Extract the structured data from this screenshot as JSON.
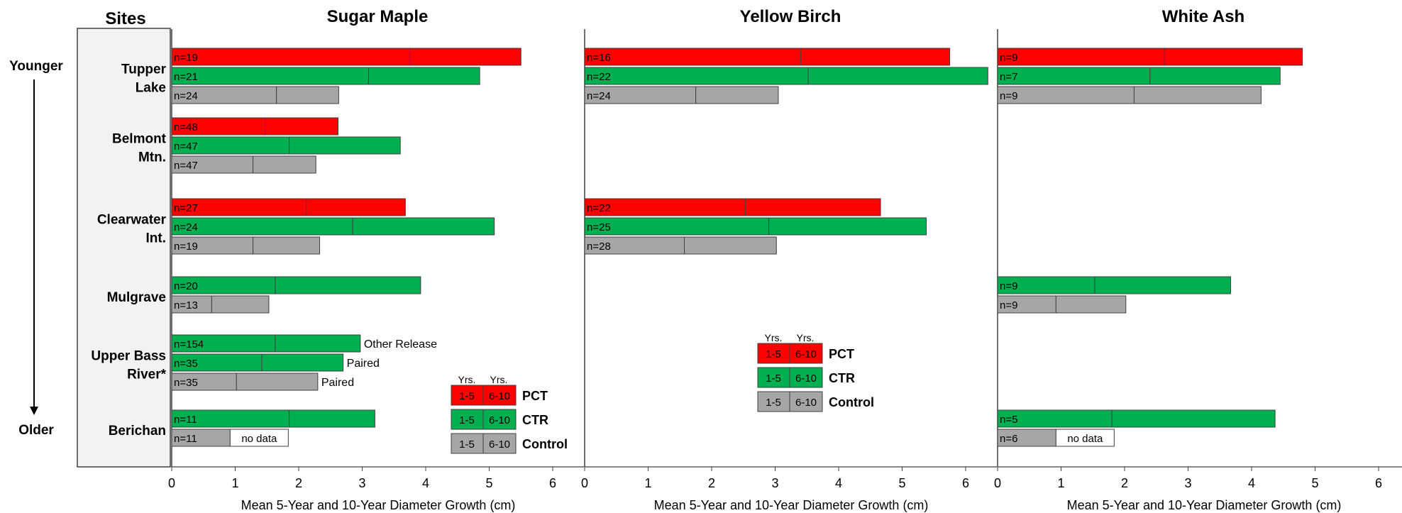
{
  "sites_title": "Sites",
  "axis_start_label": "Younger",
  "axis_end_label": "Older",
  "sites": [
    {
      "line1": "Tupper",
      "line2": "Lake"
    },
    {
      "line1": "Belmont",
      "line2": "Mtn."
    },
    {
      "line1": "Clearwater",
      "line2": "Int."
    },
    {
      "line1": "Mulgrave",
      "line2": ""
    },
    {
      "line1": "Upper Bass",
      "line2": "River*"
    },
    {
      "line1": "Berichan",
      "line2": ""
    }
  ],
  "legend": {
    "years_label": "Yrs.",
    "seg1_label": "1-5",
    "seg2_label": "6-10",
    "items": [
      {
        "name": "PCT",
        "color": "#ff0000"
      },
      {
        "name": "CTR",
        "color": "#00b050"
      },
      {
        "name": "Control",
        "color": "#a6a6a6"
      }
    ]
  },
  "chart_data": [
    {
      "type": "bar",
      "title": "Sugar Maple",
      "xlabel": "Mean 5-Year and 10-Year Diameter Growth (cm)",
      "xlim": [
        0,
        6.3
      ],
      "xticks": [
        "0",
        "1",
        "2",
        "3",
        "4",
        "5",
        "6"
      ],
      "groups": [
        {
          "site": "Tupper Lake",
          "bars": [
            {
              "series": "PCT",
              "n_label": "n=19",
              "yrs_1_5": 3.75,
              "yrs_1_10": 5.5
            },
            {
              "series": "CTR",
              "n_label": "n=21",
              "yrs_1_5": 3.1,
              "yrs_1_10": 4.85
            },
            {
              "series": "Control",
              "n_label": "n=24",
              "yrs_1_5": 1.65,
              "yrs_1_10": 2.63
            }
          ]
        },
        {
          "site": "Belmont Mtn.",
          "bars": [
            {
              "series": "PCT",
              "n_label": "n=48",
              "yrs_1_5": 1.47,
              "yrs_1_10": 2.62
            },
            {
              "series": "CTR",
              "n_label": "n=47",
              "yrs_1_5": 1.85,
              "yrs_1_10": 3.6
            },
            {
              "series": "Control",
              "n_label": "n=47",
              "yrs_1_5": 1.28,
              "yrs_1_10": 2.27
            }
          ]
        },
        {
          "site": "Clearwater Int.",
          "bars": [
            {
              "series": "PCT",
              "n_label": "n=27",
              "yrs_1_5": 2.12,
              "yrs_1_10": 3.68
            },
            {
              "series": "CTR",
              "n_label": "n=24",
              "yrs_1_5": 2.85,
              "yrs_1_10": 5.08
            },
            {
              "series": "Control",
              "n_label": "n=19",
              "yrs_1_5": 1.28,
              "yrs_1_10": 2.33
            }
          ]
        },
        {
          "site": "Mulgrave",
          "bars": [
            {
              "series": "CTR",
              "n_label": "n=20",
              "yrs_1_5": 1.63,
              "yrs_1_10": 3.92
            },
            {
              "series": "Control",
              "n_label": "n=13",
              "yrs_1_5": 0.63,
              "yrs_1_10": 1.53
            }
          ]
        },
        {
          "site": "Upper Bass River*",
          "bars": [
            {
              "series": "CTR",
              "n_label": "n=154",
              "yrs_1_5": 1.63,
              "yrs_1_10": 2.97,
              "note": "Other Release"
            },
            {
              "series": "CTR",
              "n_label": "n=35",
              "yrs_1_5": 1.42,
              "yrs_1_10": 2.7,
              "note": "Paired"
            },
            {
              "series": "Control",
              "n_label": "n=35",
              "yrs_1_5": 1.02,
              "yrs_1_10": 2.3,
              "note": "Paired"
            }
          ]
        },
        {
          "site": "Berichan",
          "bars": [
            {
              "series": "CTR",
              "n_label": "n=11",
              "yrs_1_5": 1.85,
              "yrs_1_10": 3.2
            },
            {
              "series": "Control",
              "n_label": "n=11",
              "yrs_1_5": 0.92,
              "yrs_1_10": null,
              "no_data_label": "no data"
            }
          ]
        }
      ]
    },
    {
      "type": "bar",
      "title": "Yellow Birch",
      "xlabel": "Mean 5-Year and 10-Year Diameter Growth (cm)",
      "xlim": [
        0,
        6.3
      ],
      "xticks": [
        "0",
        "1",
        "2",
        "3",
        "4",
        "5",
        "6"
      ],
      "groups": [
        {
          "site": "Tupper Lake",
          "bars": [
            {
              "series": "PCT",
              "n_label": "n=16",
              "yrs_1_5": 3.4,
              "yrs_1_10": 5.75
            },
            {
              "series": "CTR",
              "n_label": "n=22",
              "yrs_1_5": 3.52,
              "yrs_1_10": 6.35
            },
            {
              "series": "Control",
              "n_label": "n=24",
              "yrs_1_5": 1.75,
              "yrs_1_10": 3.05
            }
          ]
        },
        {
          "site": "Belmont Mtn.",
          "bars": []
        },
        {
          "site": "Clearwater Int.",
          "bars": [
            {
              "series": "PCT",
              "n_label": "n=22",
              "yrs_1_5": 2.53,
              "yrs_1_10": 4.66
            },
            {
              "series": "CTR",
              "n_label": "n=25",
              "yrs_1_5": 2.9,
              "yrs_1_10": 5.38
            },
            {
              "series": "Control",
              "n_label": "n=28",
              "yrs_1_5": 1.57,
              "yrs_1_10": 3.02
            }
          ]
        },
        {
          "site": "Mulgrave",
          "bars": []
        },
        {
          "site": "Upper Bass River*",
          "bars": []
        },
        {
          "site": "Berichan",
          "bars": []
        }
      ]
    },
    {
      "type": "bar",
      "title": "White Ash",
      "xlabel": "Mean 5-Year and 10-Year Diameter Growth (cm)",
      "xlim": [
        0,
        6.3
      ],
      "xticks": [
        "0",
        "1",
        "2",
        "3",
        "4",
        "5",
        "6"
      ],
      "groups": [
        {
          "site": "Tupper Lake",
          "bars": [
            {
              "series": "PCT",
              "n_label": "n=9",
              "yrs_1_5": 2.63,
              "yrs_1_10": 4.8
            },
            {
              "series": "CTR",
              "n_label": "n=7",
              "yrs_1_5": 2.4,
              "yrs_1_10": 4.45
            },
            {
              "series": "Control",
              "n_label": "n=9",
              "yrs_1_5": 2.15,
              "yrs_1_10": 4.15
            }
          ]
        },
        {
          "site": "Belmont Mtn.",
          "bars": []
        },
        {
          "site": "Clearwater Int.",
          "bars": []
        },
        {
          "site": "Mulgrave",
          "bars": [
            {
              "series": "CTR",
              "n_label": "n=9",
              "yrs_1_5": 1.53,
              "yrs_1_10": 3.67
            },
            {
              "series": "Control",
              "n_label": "n=9",
              "yrs_1_5": 0.92,
              "yrs_1_10": 2.02
            }
          ]
        },
        {
          "site": "Upper Bass River*",
          "bars": []
        },
        {
          "site": "Berichan",
          "bars": [
            {
              "series": "CTR",
              "n_label": "n=5",
              "yrs_1_5": 1.8,
              "yrs_1_10": 4.37
            },
            {
              "series": "Control",
              "n_label": "n=6",
              "yrs_1_5": 0.92,
              "yrs_1_10": null,
              "no_data_label": "no data"
            }
          ]
        }
      ]
    }
  ]
}
